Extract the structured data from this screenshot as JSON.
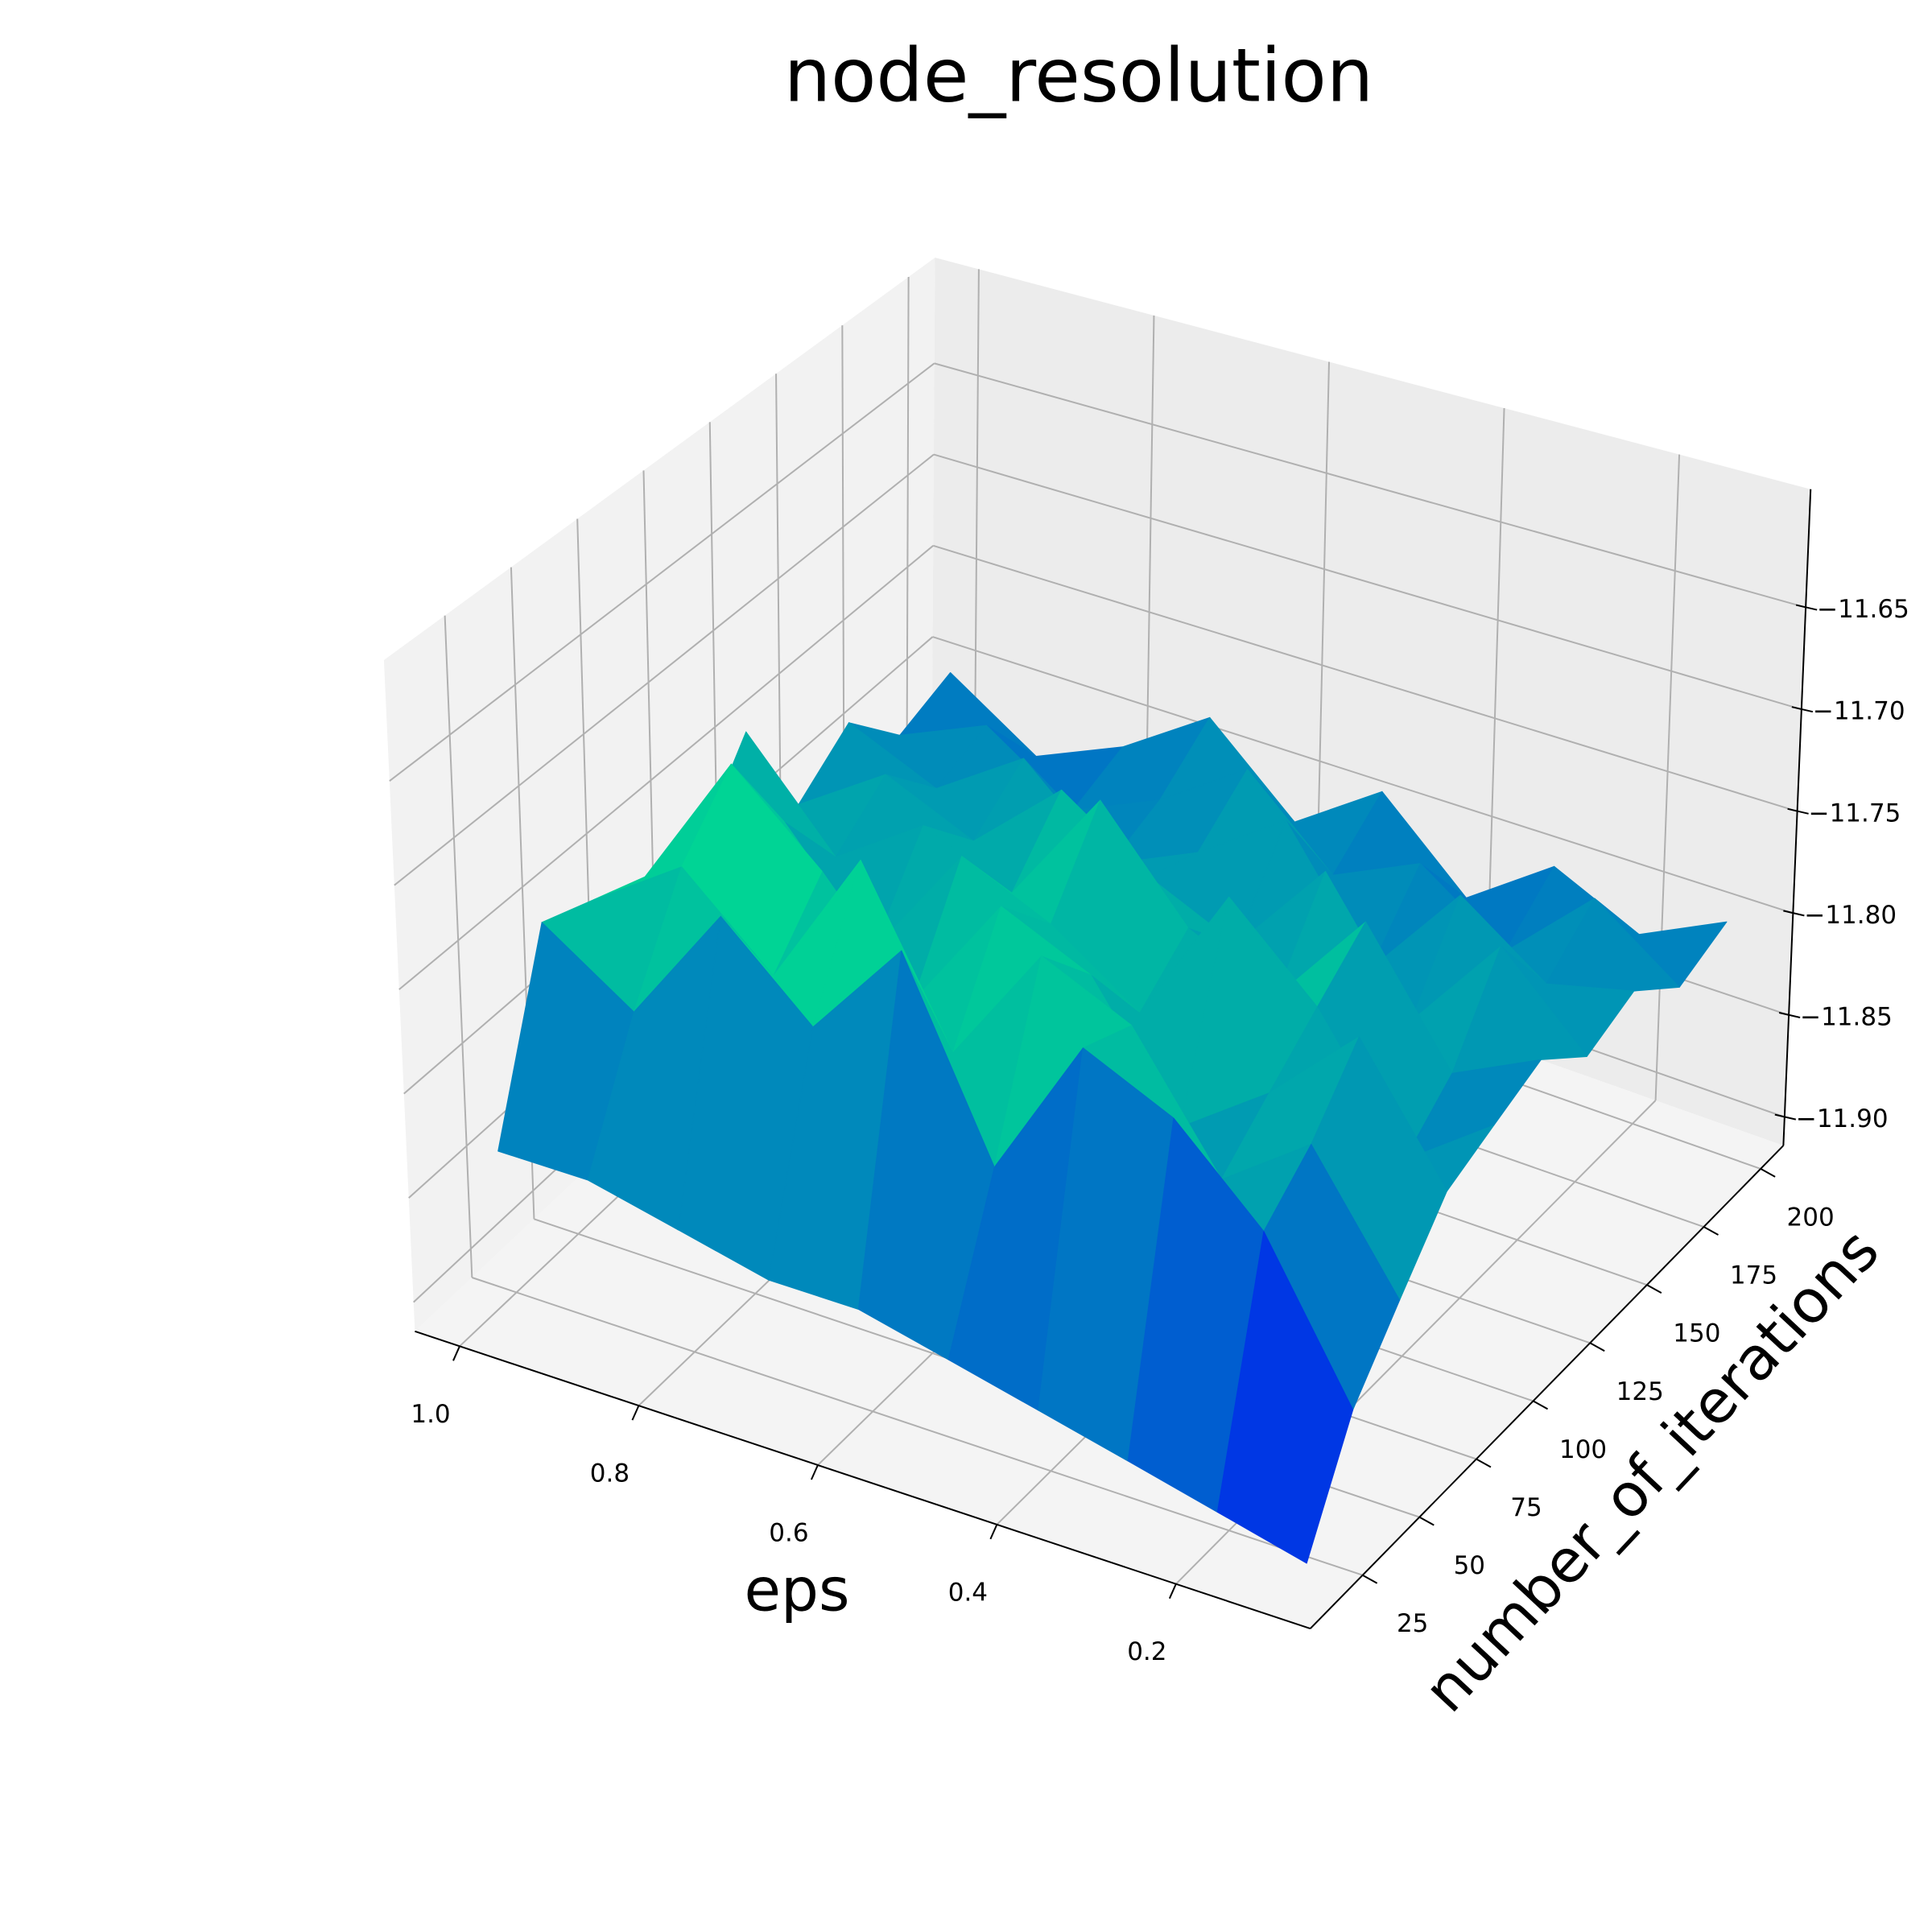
{
  "chart_data": {
    "type": "surface",
    "title": "node_resolution",
    "xlabel": "eps",
    "ylabel": "number_of_iterations",
    "colormap": "winter",
    "x": [
      0.1,
      0.2,
      0.3,
      0.4,
      0.5,
      0.6,
      0.7,
      0.8,
      0.9,
      1.0
    ],
    "y": [
      20,
      40,
      60,
      80,
      100,
      120,
      140,
      160,
      180,
      200
    ],
    "z": [
      [
        -11.91,
        -11.9,
        -11.89,
        -11.88,
        -11.87,
        -11.86,
        -11.86,
        -11.85,
        -11.84,
        -11.84
      ],
      [
        -11.86,
        -11.79,
        -11.75,
        -11.73,
        -11.8,
        -11.71,
        -11.76,
        -11.72,
        -11.78,
        -11.75
      ],
      [
        -11.83,
        -11.77,
        -11.8,
        -11.74,
        -11.72,
        -11.78,
        -11.7,
        -11.77,
        -11.73,
        -11.76
      ],
      [
        -11.8,
        -11.74,
        -11.78,
        -11.81,
        -11.75,
        -11.73,
        -11.79,
        -11.74,
        -11.7,
        -11.77
      ],
      [
        -11.79,
        -11.82,
        -11.76,
        -11.72,
        -11.79,
        -11.76,
        -11.74,
        -11.8,
        -11.75,
        -11.78
      ],
      [
        -11.78,
        -11.8,
        -11.74,
        -11.79,
        -11.77,
        -11.72,
        -11.78,
        -11.76,
        -11.79,
        -11.74
      ],
      [
        -11.8,
        -11.76,
        -11.81,
        -11.75,
        -11.8,
        -11.78,
        -11.75,
        -11.79,
        -11.77,
        -11.8
      ],
      [
        -11.79,
        -11.8,
        -11.77,
        -11.82,
        -11.76,
        -11.79,
        -11.81,
        -11.77,
        -11.8,
        -11.78
      ],
      [
        -11.81,
        -11.78,
        -11.82,
        -11.79,
        -11.81,
        -11.77,
        -11.8,
        -11.82,
        -11.79,
        -11.81
      ],
      [
        -11.8,
        -11.82,
        -11.8,
        -11.83,
        -11.79,
        -11.82,
        -11.78,
        -11.81,
        -11.83,
        -11.8
      ]
    ],
    "xlim": [
      0.05,
      1.05
    ],
    "ylim": [
      2,
      210
    ],
    "zlim": [
      -11.914,
      -11.592
    ],
    "xticks": [
      0.2,
      0.4,
      0.6,
      0.8,
      {
        "value": 1.0,
        "label": "1.0"
      }
    ],
    "yticks": [
      25,
      50,
      75,
      100,
      125,
      150,
      175,
      200
    ],
    "zticks": [
      {
        "value": -11.9,
        "label": "−11.90"
      },
      {
        "value": -11.85,
        "label": "−11.85"
      },
      {
        "value": -11.8,
        "label": "−11.80"
      },
      {
        "value": -11.75,
        "label": "−11.75"
      },
      {
        "value": -11.7,
        "label": "−11.70"
      },
      {
        "value": -11.65,
        "label": "−11.65"
      }
    ],
    "grid": true
  }
}
